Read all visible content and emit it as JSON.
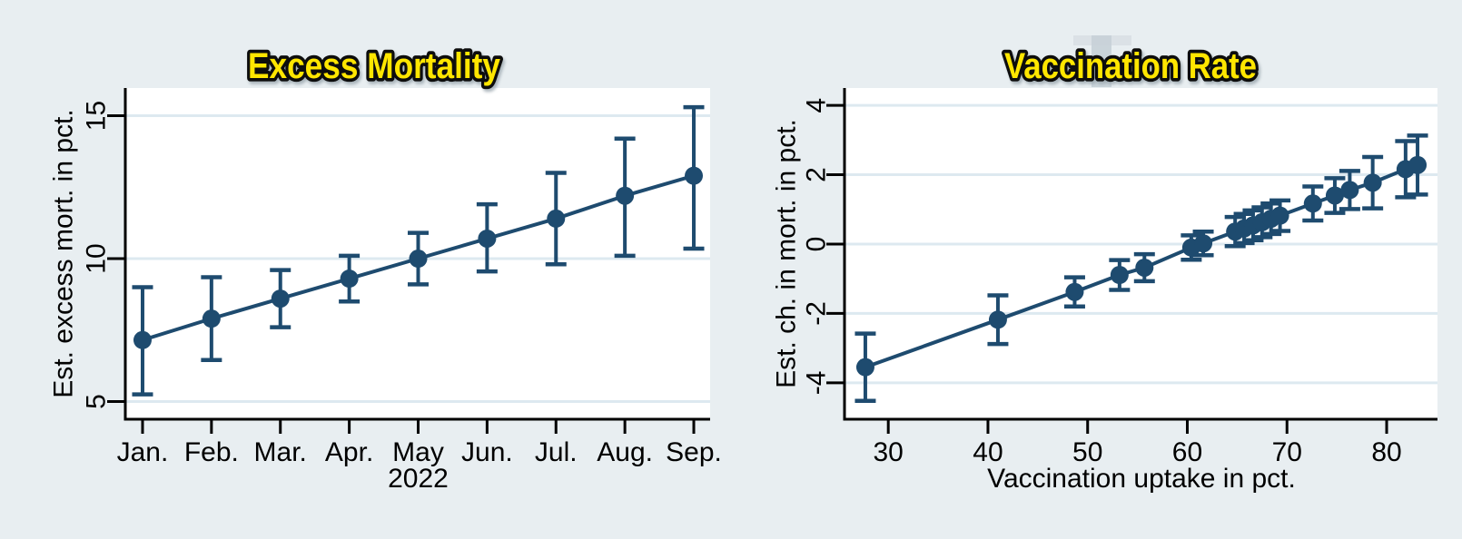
{
  "window": {
    "description": "Two-panel statistical graph",
    "background": "#e8eef1"
  },
  "colors": {
    "background": "#e8eef1",
    "plot_background": "#ffffff",
    "series": "#1e4b6f",
    "grid": "#dde9f0",
    "axis": "#000000",
    "tick_text": "#000000",
    "title_fill": "#ffe600",
    "title_stroke": "#0d0d0d",
    "title_shadow": "#9aa6ad",
    "artifact_bar": "#c7d0d7",
    "artifact_top": "#d9dfe4"
  },
  "chart_data": [
    {
      "name": "excess-mortality",
      "type": "line",
      "title": "Excess Mortality",
      "xlabel": "2022",
      "ylabel": "Est. excess mort. in pct.",
      "x_ticks": [
        1,
        2,
        3,
        4,
        5,
        6,
        7,
        8,
        9
      ],
      "x_tick_labels": [
        "Jan.",
        "Feb.",
        "Mar.",
        "Apr.",
        "May",
        "Jun.",
        "Jul.",
        "Aug.",
        "Sep."
      ],
      "y_ticks": [
        5,
        10,
        15
      ],
      "y_tick_labels": [
        "5",
        "10",
        "15"
      ],
      "xlim": [
        0.763,
        9.237
      ],
      "ylim": [
        4.38,
        15.97
      ],
      "grid": true,
      "x": [
        1,
        2,
        3,
        4,
        5,
        6,
        7,
        8,
        9
      ],
      "y": [
        7.15,
        7.9,
        8.6,
        9.3,
        10.0,
        10.7,
        11.4,
        12.2,
        12.9
      ],
      "ci_low": [
        5.25,
        6.45,
        7.6,
        8.5,
        9.1,
        9.55,
        9.8,
        10.1,
        10.35
      ],
      "ci_high": [
        9.0,
        9.35,
        9.6,
        10.1,
        10.9,
        11.9,
        13.0,
        14.2,
        15.3
      ]
    },
    {
      "name": "vaccination-rate",
      "type": "line",
      "title": "Vaccination Rate",
      "xlabel": "Vaccination uptake in pct.",
      "ylabel": "Est. ch. in mort. in pct.",
      "x_ticks": [
        30,
        40,
        50,
        60,
        70,
        80
      ],
      "x_tick_labels": [
        "30",
        "40",
        "50",
        "60",
        "70",
        "80"
      ],
      "y_ticks": [
        -4,
        -2,
        0,
        2,
        4
      ],
      "y_tick_labels": [
        "-4",
        "-2",
        "0",
        "2",
        "4"
      ],
      "xlim": [
        25.7,
        85.1
      ],
      "ylim": [
        -5.05,
        4.5
      ],
      "grid": true,
      "x": [
        27.7,
        41.0,
        48.7,
        53.2,
        55.7,
        60.4,
        61.6,
        64.8,
        65.7,
        66.6,
        67.5,
        68.4,
        69.3,
        72.6,
        74.8,
        76.3,
        78.6,
        81.9,
        83.1
      ],
      "y": [
        -3.55,
        -2.18,
        -1.38,
        -0.89,
        -0.68,
        -0.1,
        0.02,
        0.36,
        0.45,
        0.54,
        0.63,
        0.73,
        0.82,
        1.17,
        1.4,
        1.56,
        1.77,
        2.16,
        2.28
      ],
      "ci_low": [
        -4.52,
        -2.88,
        -1.8,
        -1.32,
        -1.07,
        -0.45,
        -0.32,
        -0.06,
        0.03,
        0.11,
        0.2,
        0.29,
        0.38,
        0.68,
        0.9,
        1.01,
        1.03,
        1.35,
        1.43
      ],
      "ci_high": [
        -2.58,
        -1.48,
        -0.96,
        -0.46,
        -0.29,
        0.25,
        0.36,
        0.78,
        0.87,
        0.97,
        1.06,
        1.17,
        1.26,
        1.66,
        1.9,
        2.11,
        2.51,
        2.97,
        3.13
      ]
    }
  ],
  "title_artifact": {
    "description": "gray cursor/selection artifact behind right title",
    "bar_color": "#c7d0d7",
    "top_color": "#d9dfe4"
  }
}
